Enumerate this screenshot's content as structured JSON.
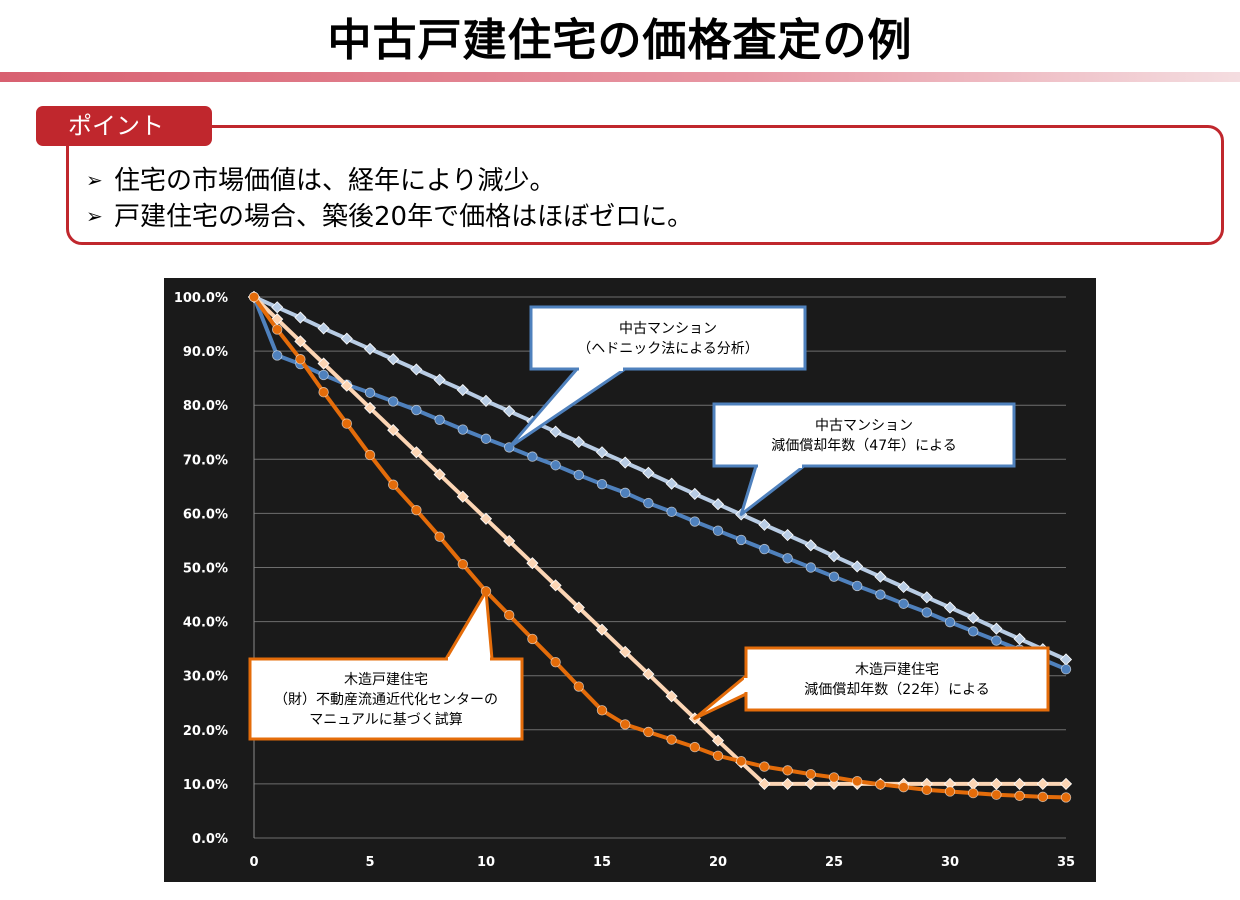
{
  "slide": {
    "title": "中古戸建住宅の価格査定の例",
    "point_label": "ポイント",
    "bullet_mark": "➢",
    "bullets": [
      "住宅の市場価値は、経年により減少。",
      "戸建住宅の場合、築後20年で価格はほぼゼロに。"
    ]
  },
  "colors": {
    "accent_red": "#c0272d",
    "chart_bg": "#1a1a1a",
    "light_blue": "#b8cce4",
    "blue": "#4f81bd",
    "light_orange": "#fcd5b4",
    "orange": "#e46c0a"
  },
  "chart_data": {
    "type": "line",
    "x": [
      0,
      1,
      2,
      3,
      4,
      5,
      6,
      7,
      8,
      9,
      10,
      11,
      12,
      13,
      14,
      15,
      16,
      17,
      18,
      19,
      20,
      21,
      22,
      23,
      24,
      25,
      26,
      27,
      28,
      29,
      30,
      31,
      32,
      33,
      34,
      35
    ],
    "xticks": [
      0,
      5,
      10,
      15,
      20,
      25,
      30,
      35
    ],
    "yticks": [
      "0.0%",
      "10.0%",
      "20.0%",
      "30.0%",
      "40.0%",
      "50.0%",
      "60.0%",
      "70.0%",
      "80.0%",
      "90.0%",
      "100.0%"
    ],
    "ylim": [
      0,
      100
    ],
    "xlim": [
      0,
      35
    ],
    "grid": true,
    "series": [
      {
        "key": "mansion_dep",
        "color": "#b8cce4",
        "marker": "diamond",
        "values": [
          100,
          98.1,
          96.2,
          94.2,
          92.3,
          90.4,
          88.5,
          86.6,
          84.7,
          82.8,
          80.8,
          78.9,
          77.0,
          75.1,
          73.2,
          71.3,
          69.4,
          67.5,
          65.5,
          63.6,
          61.7,
          59.8,
          57.9,
          56.0,
          54.1,
          52.1,
          50.2,
          48.3,
          46.4,
          44.5,
          42.6,
          40.7,
          38.7,
          36.8,
          34.9,
          33.0
        ]
      },
      {
        "key": "mansion_hedonic",
        "color": "#4f81bd",
        "marker": "circle",
        "values": [
          100,
          89.2,
          87.6,
          85.6,
          83.8,
          82.3,
          80.7,
          79.1,
          77.3,
          75.5,
          73.8,
          72.2,
          70.5,
          68.9,
          67.1,
          65.4,
          63.8,
          61.9,
          60.3,
          58.5,
          56.8,
          55.1,
          53.4,
          51.7,
          50.0,
          48.3,
          46.6,
          45.0,
          43.3,
          41.7,
          39.9,
          38.2,
          36.5,
          34.8,
          33.0,
          31.2
        ]
      },
      {
        "key": "wood_dep",
        "color": "#fcd5b4",
        "marker": "diamond",
        "values": [
          100,
          95.9,
          91.8,
          87.7,
          83.6,
          79.5,
          75.4,
          71.3,
          67.2,
          63.1,
          59.0,
          54.9,
          50.8,
          46.7,
          42.6,
          38.5,
          34.4,
          30.3,
          26.2,
          22.1,
          18.0,
          14.0,
          10.0,
          10.0,
          10.0,
          10.0,
          10.0,
          10.0,
          10.0,
          10.0,
          10.0,
          10.0,
          10.0,
          10.0,
          10.0,
          10.0
        ]
      },
      {
        "key": "wood_manual",
        "color": "#e46c0a",
        "marker": "circle",
        "values": [
          100,
          94.0,
          88.5,
          82.4,
          76.6,
          70.8,
          65.3,
          60.6,
          55.7,
          50.6,
          45.6,
          41.2,
          36.8,
          32.5,
          28.0,
          23.6,
          21.0,
          19.6,
          18.2,
          16.8,
          15.2,
          14.2,
          13.2,
          12.5,
          11.8,
          11.2,
          10.5,
          9.9,
          9.4,
          8.9,
          8.6,
          8.3,
          8.0,
          7.8,
          7.6,
          7.5
        ]
      }
    ],
    "callouts": [
      {
        "key": "mansion_hedonic",
        "line1": "中古マンション",
        "line2": "（ヘドニック法による分析）"
      },
      {
        "key": "mansion_dep",
        "line1": "中古マンション",
        "line2": "減価償却年数（47年）による"
      },
      {
        "key": "wood_manual",
        "line1": "木造戸建住宅",
        "line2": "（財）不動産流通近代化センターの",
        "line3": "マニュアルに基づく試算"
      },
      {
        "key": "wood_dep",
        "line1": "木造戸建住宅",
        "line2": "減価償却年数（22年）による"
      }
    ]
  }
}
